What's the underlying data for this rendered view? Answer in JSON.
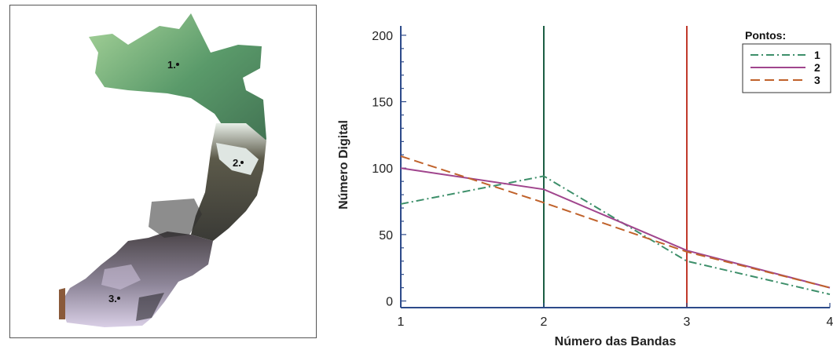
{
  "map": {
    "points": [
      {
        "label": "1."
      },
      {
        "label": "2."
      },
      {
        "label": "3."
      }
    ]
  },
  "chart_data": {
    "type": "line",
    "title": "",
    "xlabel": "Número das Bandas",
    "ylabel": "Número Digital",
    "x": [
      1,
      2,
      3,
      4
    ],
    "xlim": [
      1,
      4
    ],
    "ylim": [
      -5,
      210
    ],
    "xticks": [
      "1",
      "2",
      "3",
      "4"
    ],
    "yticks": [
      "0",
      "50",
      "100",
      "150",
      "200"
    ],
    "ytick_values": [
      0,
      50,
      100,
      150,
      200
    ],
    "legend_title": "Pontos:",
    "legend_position": "top-right",
    "series": [
      {
        "name": "1",
        "values": [
          73,
          94,
          30,
          5
        ],
        "color": "#3d8f6a",
        "dash": "dash-dot"
      },
      {
        "name": "2",
        "values": [
          100,
          84,
          38,
          10
        ],
        "color": "#a0458d",
        "dash": "solid"
      },
      {
        "name": "3",
        "values": [
          109,
          74,
          37,
          10
        ],
        "color": "#c0622b",
        "dash": "dashed"
      }
    ],
    "vertical_lines": [
      {
        "x": 2,
        "color": "#1c5e43"
      },
      {
        "x": 3,
        "color": "#c0392b"
      }
    ],
    "grid": false
  }
}
